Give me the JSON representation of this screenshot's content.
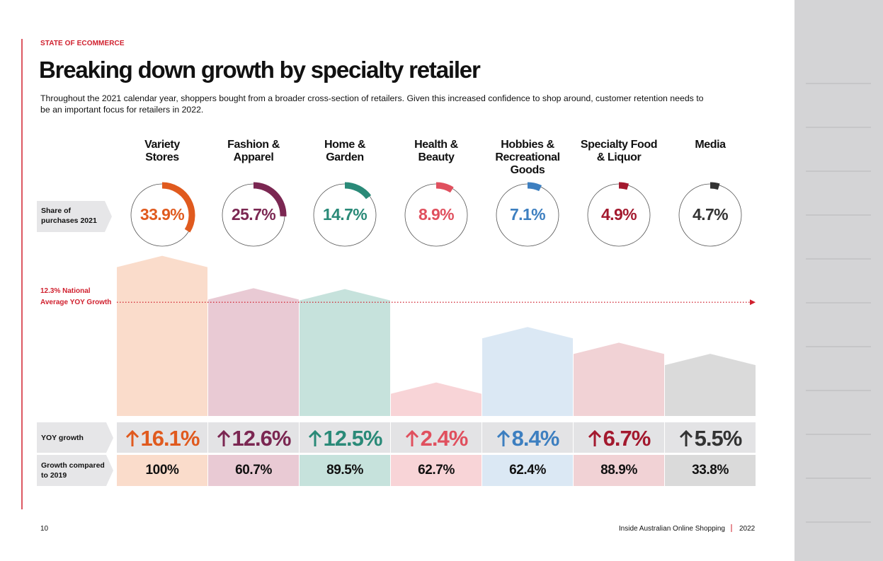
{
  "header": {
    "section": "STATE OF ECOMMERCE",
    "title": "Breaking down growth by specialty retailer",
    "intro": "Throughout the 2021 calendar year, shoppers bought from a broader cross-section of retailers. Given this increased confidence to shop around, customer retention needs to be an important focus for retailers in 2022."
  },
  "row_labels": {
    "share": "Share of\npurchases 2021",
    "yoy": "YOY growth",
    "vs2019": "Growth compared\nto 2019"
  },
  "national_average": {
    "value": 12.3,
    "label": "12.3% National\nAverage YOY Growth"
  },
  "retailers": [
    {
      "name": "Variety\nStores",
      "share": 33.9,
      "share_label": "33.9%",
      "yoy": 16.1,
      "yoy_label": "16.1%",
      "vs2019": "100%",
      "color": "#e05a1e",
      "tint": "#fadccb"
    },
    {
      "name": "Fashion &\nApparel",
      "share": 25.7,
      "share_label": "25.7%",
      "yoy": 12.6,
      "yoy_label": "12.6%",
      "vs2019": "60.7%",
      "color": "#7b2752",
      "tint": "#e9cad4"
    },
    {
      "name": "Home &\nGarden",
      "share": 14.7,
      "share_label": "14.7%",
      "yoy": 12.5,
      "yoy_label": "12.5%",
      "vs2019": "89.5%",
      "color": "#2a8a78",
      "tint": "#c6e2dc"
    },
    {
      "name": "Health &\nBeauty",
      "share": 8.9,
      "share_label": "8.9%",
      "yoy": 2.4,
      "yoy_label": "2.4%",
      "vs2019": "62.7%",
      "color": "#e0505e",
      "tint": "#f8d4d7"
    },
    {
      "name": "Hobbies &\nRecreational\nGoods",
      "share": 7.1,
      "share_label": "7.1%",
      "yoy": 8.4,
      "yoy_label": "8.4%",
      "vs2019": "62.4%",
      "color": "#3d7fc0",
      "tint": "#dbe8f4"
    },
    {
      "name": "Specialty Food\n& Liquor",
      "share": 4.9,
      "share_label": "4.9%",
      "yoy": 6.7,
      "yoy_label": "6.7%",
      "vs2019": "88.9%",
      "color": "#a3192e",
      "tint": "#f1d2d5"
    },
    {
      "name": "Media",
      "share": 4.7,
      "share_label": "4.7%",
      "yoy": 5.5,
      "yoy_label": "5.5%",
      "vs2019": "33.8%",
      "color": "#333333",
      "tint": "#dadada"
    }
  ],
  "footer": {
    "page": "10",
    "publication": "Inside Australian Online Shopping",
    "year": "2022"
  }
}
